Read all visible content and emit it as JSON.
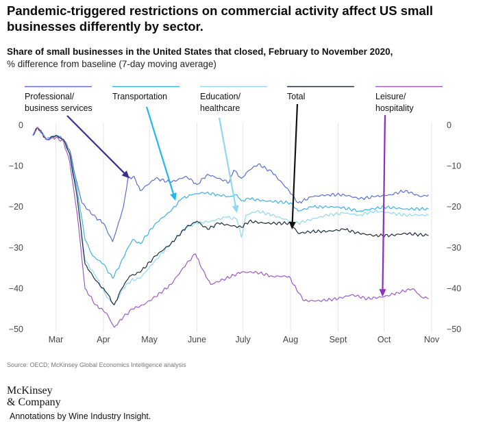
{
  "header": {
    "title": "Pandemic-triggered restrictions on commercial activity affect US small businesses differently by sector.",
    "subtitle": "Share of small businesses in the United States that closed, February to November 2020,",
    "unit": "% difference from baseline (7-day moving average)"
  },
  "footer": {
    "source": "Source: OECD; McKinsey Global Economics Intelligence analysis",
    "logo_line1": "McKinsey",
    "logo_line2": "& Company",
    "annotation_note": "Annotations by Wine Industry Insight."
  },
  "chart_data": {
    "type": "line",
    "title": "Share of small businesses in the United States that closed, February to November 2020,",
    "ylabel": "% difference from baseline (7-day moving average)",
    "xlabel": "",
    "ylim": [
      -50,
      0
    ],
    "yticks": [
      0,
      -10,
      -20,
      -30,
      -40,
      -50
    ],
    "x_range": [
      "2020-02-15",
      "2020-11-01"
    ],
    "xticks": [
      {
        "label": "Mar",
        "date": "2020-03-01"
      },
      {
        "label": "Apr",
        "date": "2020-04-01"
      },
      {
        "label": "May",
        "date": "2020-05-01"
      },
      {
        "label": "June",
        "date": "2020-06-01"
      },
      {
        "label": "July",
        "date": "2020-07-01"
      },
      {
        "label": "Aug",
        "date": "2020-08-01"
      },
      {
        "label": "Sept",
        "date": "2020-09-01"
      },
      {
        "label": "Oct",
        "date": "2020-10-01"
      },
      {
        "label": "Nov",
        "date": "2020-11-01"
      }
    ],
    "grid": "vertical",
    "legend_position": "top",
    "series": [
      {
        "name": "Professional/ business services",
        "label_lines": [
          "Professional/",
          "business services"
        ],
        "color": "#5b6fd0",
        "points": [
          [
            "2020-02-15",
            -2.5
          ],
          [
            "2020-02-18",
            -0.5
          ],
          [
            "2020-02-24",
            -3.5
          ],
          [
            "2020-03-01",
            -2.5
          ],
          [
            "2020-03-06",
            -3.5
          ],
          [
            "2020-03-10",
            -6
          ],
          [
            "2020-03-14",
            -13
          ],
          [
            "2020-03-18",
            -19
          ],
          [
            "2020-03-25",
            -22
          ],
          [
            "2020-04-01",
            -24
          ],
          [
            "2020-04-07",
            -28.5
          ],
          [
            "2020-04-10",
            -25
          ],
          [
            "2020-04-14",
            -20
          ],
          [
            "2020-04-17",
            -13
          ],
          [
            "2020-04-21",
            -12.5
          ],
          [
            "2020-04-25",
            -16
          ],
          [
            "2020-05-05",
            -13
          ],
          [
            "2020-05-15",
            -14
          ],
          [
            "2020-05-25",
            -12.5
          ],
          [
            "2020-06-01",
            -14.5
          ],
          [
            "2020-06-08",
            -12
          ],
          [
            "2020-06-15",
            -13
          ],
          [
            "2020-06-22",
            -14
          ],
          [
            "2020-06-25",
            -11
          ],
          [
            "2020-06-30",
            -13
          ],
          [
            "2020-07-05",
            -11
          ],
          [
            "2020-07-11",
            -9.5
          ],
          [
            "2020-07-20",
            -11.5
          ],
          [
            "2020-07-31",
            -16
          ],
          [
            "2020-08-06",
            -19
          ],
          [
            "2020-08-15",
            -17.5
          ],
          [
            "2020-08-25",
            -17
          ],
          [
            "2020-09-05",
            -17
          ],
          [
            "2020-09-15",
            -18
          ],
          [
            "2020-09-25",
            -17.5
          ],
          [
            "2020-10-05",
            -17
          ],
          [
            "2020-10-15",
            -16
          ],
          [
            "2020-10-25",
            -17.5
          ],
          [
            "2020-10-30",
            -17
          ]
        ]
      },
      {
        "name": "Transportation",
        "label_lines": [
          "Transportation"
        ],
        "color": "#3db0e8",
        "points": [
          [
            "2020-02-15",
            -2.5
          ],
          [
            "2020-02-18",
            -0.5
          ],
          [
            "2020-02-24",
            -3.5
          ],
          [
            "2020-03-01",
            -2.5
          ],
          [
            "2020-03-06",
            -3.5
          ],
          [
            "2020-03-10",
            -7
          ],
          [
            "2020-03-15",
            -16
          ],
          [
            "2020-03-20",
            -28
          ],
          [
            "2020-03-25",
            -32
          ],
          [
            "2020-04-01",
            -34
          ],
          [
            "2020-04-07",
            -37.5
          ],
          [
            "2020-04-12",
            -34
          ],
          [
            "2020-04-17",
            -30
          ],
          [
            "2020-04-20",
            -28
          ],
          [
            "2020-04-25",
            -29
          ],
          [
            "2020-05-05",
            -24
          ],
          [
            "2020-05-15",
            -21
          ],
          [
            "2020-05-22",
            -18
          ],
          [
            "2020-05-29",
            -17
          ],
          [
            "2020-06-05",
            -16.5
          ],
          [
            "2020-06-15",
            -17
          ],
          [
            "2020-06-22",
            -17.5
          ],
          [
            "2020-06-27",
            -17
          ],
          [
            "2020-06-30",
            -18.5
          ],
          [
            "2020-07-05",
            -18
          ],
          [
            "2020-07-15",
            -18.5
          ],
          [
            "2020-08-01",
            -19
          ],
          [
            "2020-08-06",
            -21
          ],
          [
            "2020-08-15",
            -20
          ],
          [
            "2020-09-01",
            -20
          ],
          [
            "2020-09-15",
            -21
          ],
          [
            "2020-10-01",
            -20
          ],
          [
            "2020-10-15",
            -20.5
          ],
          [
            "2020-10-30",
            -20.5
          ]
        ]
      },
      {
        "name": "Education/ healthcare",
        "label_lines": [
          "Education/",
          "healthcare"
        ],
        "color": "#8fd8f2",
        "points": [
          [
            "2020-02-15",
            -2.5
          ],
          [
            "2020-02-18",
            -0.5
          ],
          [
            "2020-02-24",
            -3.5
          ],
          [
            "2020-03-01",
            -2.5
          ],
          [
            "2020-03-06",
            -3.5
          ],
          [
            "2020-03-10",
            -7
          ],
          [
            "2020-03-15",
            -18
          ],
          [
            "2020-03-20",
            -33
          ],
          [
            "2020-03-27",
            -37
          ],
          [
            "2020-04-03",
            -42
          ],
          [
            "2020-04-08",
            -44
          ],
          [
            "2020-04-14",
            -40
          ],
          [
            "2020-04-19",
            -38
          ],
          [
            "2020-04-25",
            -37.5
          ],
          [
            "2020-05-05",
            -33
          ],
          [
            "2020-05-15",
            -29
          ],
          [
            "2020-05-25",
            -25
          ],
          [
            "2020-06-01",
            -24
          ],
          [
            "2020-06-10",
            -23.5
          ],
          [
            "2020-06-20",
            -22.5
          ],
          [
            "2020-06-27",
            -23
          ],
          [
            "2020-06-30",
            -27.5
          ],
          [
            "2020-07-03",
            -22
          ],
          [
            "2020-07-10",
            -21
          ],
          [
            "2020-07-20",
            -22
          ],
          [
            "2020-08-01",
            -23.5
          ],
          [
            "2020-08-06",
            -24
          ],
          [
            "2020-08-15",
            -23
          ],
          [
            "2020-08-25",
            -22
          ],
          [
            "2020-09-05",
            -21.5
          ],
          [
            "2020-09-15",
            -22
          ],
          [
            "2020-09-25",
            -21
          ],
          [
            "2020-10-05",
            -21.5
          ],
          [
            "2020-10-15",
            -22
          ],
          [
            "2020-10-30",
            -22
          ]
        ]
      },
      {
        "name": "Total",
        "label_lines": [
          "Total"
        ],
        "color": "#1d2b3a",
        "points": [
          [
            "2020-02-15",
            -2.5
          ],
          [
            "2020-02-18",
            -0.5
          ],
          [
            "2020-02-24",
            -3.5
          ],
          [
            "2020-03-01",
            -2.5
          ],
          [
            "2020-03-06",
            -3.5
          ],
          [
            "2020-03-10",
            -7
          ],
          [
            "2020-03-15",
            -18
          ],
          [
            "2020-03-20",
            -34
          ],
          [
            "2020-03-27",
            -38
          ],
          [
            "2020-04-03",
            -41
          ],
          [
            "2020-04-08",
            -44
          ],
          [
            "2020-04-13",
            -40
          ],
          [
            "2020-04-18",
            -37
          ],
          [
            "2020-04-25",
            -36
          ],
          [
            "2020-05-05",
            -32
          ],
          [
            "2020-05-15",
            -29
          ],
          [
            "2020-05-25",
            -25
          ],
          [
            "2020-06-01",
            -23.5
          ],
          [
            "2020-06-08",
            -25.5
          ],
          [
            "2020-06-15",
            -24
          ],
          [
            "2020-06-22",
            -24.5
          ],
          [
            "2020-06-30",
            -25
          ],
          [
            "2020-07-05",
            -23.5
          ],
          [
            "2020-07-15",
            -24
          ],
          [
            "2020-08-01",
            -24
          ],
          [
            "2020-08-06",
            -26.5
          ],
          [
            "2020-08-15",
            -26
          ],
          [
            "2020-08-25",
            -26
          ],
          [
            "2020-09-05",
            -25.5
          ],
          [
            "2020-09-15",
            -26.5
          ],
          [
            "2020-09-25",
            -27
          ],
          [
            "2020-10-05",
            -27
          ],
          [
            "2020-10-15",
            -26.5
          ],
          [
            "2020-10-30",
            -27
          ]
        ]
      },
      {
        "name": "Leisure/ hospitality",
        "label_lines": [
          "Leisure/",
          "hospitality"
        ],
        "color": "#9b59c8",
        "points": [
          [
            "2020-02-15",
            -2.5
          ],
          [
            "2020-02-18",
            -0.5
          ],
          [
            "2020-02-24",
            -3.5
          ],
          [
            "2020-03-01",
            -3
          ],
          [
            "2020-03-06",
            -4
          ],
          [
            "2020-03-10",
            -9
          ],
          [
            "2020-03-15",
            -22
          ],
          [
            "2020-03-20",
            -40
          ],
          [
            "2020-03-27",
            -44
          ],
          [
            "2020-04-03",
            -46
          ],
          [
            "2020-04-08",
            -49.5
          ],
          [
            "2020-04-14",
            -47
          ],
          [
            "2020-04-20",
            -45
          ],
          [
            "2020-04-27",
            -44
          ],
          [
            "2020-05-05",
            -42
          ],
          [
            "2020-05-15",
            -39
          ],
          [
            "2020-05-25",
            -34
          ],
          [
            "2020-05-31",
            -31.5
          ],
          [
            "2020-06-04",
            -35
          ],
          [
            "2020-06-10",
            -39
          ],
          [
            "2020-06-20",
            -37.5
          ],
          [
            "2020-06-30",
            -36
          ],
          [
            "2020-07-10",
            -36
          ],
          [
            "2020-07-20",
            -37
          ],
          [
            "2020-07-31",
            -37
          ],
          [
            "2020-08-06",
            -41
          ],
          [
            "2020-08-10",
            -43
          ],
          [
            "2020-08-20",
            -43
          ],
          [
            "2020-09-01",
            -42.5
          ],
          [
            "2020-09-10",
            -41.5
          ],
          [
            "2020-09-20",
            -42.5
          ],
          [
            "2020-10-01",
            -42
          ],
          [
            "2020-10-10",
            -41
          ],
          [
            "2020-10-20",
            -40
          ],
          [
            "2020-10-25",
            -42
          ],
          [
            "2020-10-30",
            -42.5
          ]
        ]
      }
    ],
    "annotations": [
      {
        "series": "Professional/ business services",
        "target_date": "2020-04-18",
        "target_value": -13,
        "color": "#3b2d8c"
      },
      {
        "series": "Transportation",
        "target_date": "2020-05-18",
        "target_value": -18.5,
        "color": "#1fb8ef"
      },
      {
        "series": "Education/ healthcare",
        "target_date": "2020-06-27",
        "target_value": -21.5,
        "color": "#8fd8f2"
      },
      {
        "series": "Total",
        "target_date": "2020-08-02",
        "target_value": -25.5,
        "color": "#111111"
      },
      {
        "series": "Leisure/ hospitality",
        "target_date": "2020-09-30",
        "target_value": -42,
        "color": "#8e2fc0"
      }
    ]
  }
}
